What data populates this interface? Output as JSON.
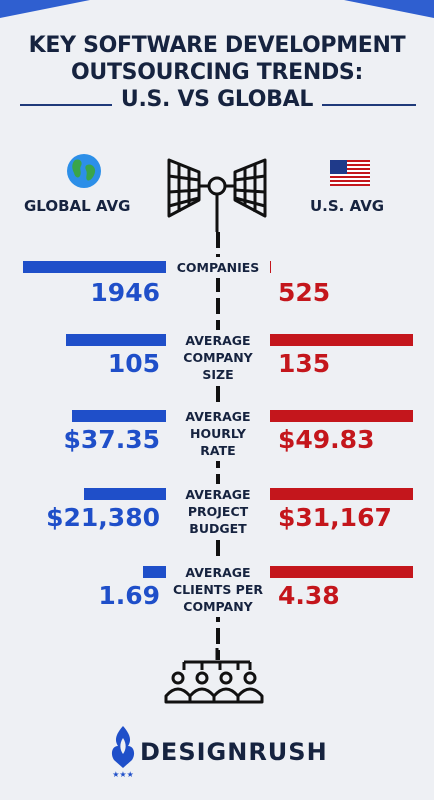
{
  "title_lines": [
    "KEY SOFTWARE DEVELOPMENT",
    "OUTSOURCING TRENDS:",
    "U.S. VS GLOBAL"
  ],
  "left_label": "GLOBAL AVG",
  "right_label": "U.S. AVG",
  "brand": "DESIGNRUSH",
  "colors": {
    "global": "#1f4fc9",
    "us": "#c4161c",
    "text": "#16233f",
    "background": "#eef0f4"
  },
  "chart_data": {
    "type": "bar",
    "layout": "diverging-horizontal",
    "categories": [
      "COMPANIES",
      "AVERAGE COMPANY SIZE",
      "AVERAGE HOURLY RATE",
      "AVERAGE PROJECT BUDGET",
      "AVERAGE CLIENTS PER COMPANY"
    ],
    "category_label_lines": [
      [
        "COMPANIES"
      ],
      [
        "AVERAGE",
        "COMPANY",
        "SIZE"
      ],
      [
        "AVERAGE",
        "HOURLY",
        "RATE"
      ],
      [
        "AVERAGE",
        "PROJECT",
        "BUDGET"
      ],
      [
        "AVERAGE",
        "CLIENTS PER",
        "COMPANY"
      ]
    ],
    "series": [
      {
        "name": "GLOBAL AVG",
        "values": [
          1946,
          105,
          37.35,
          21380,
          1.69
        ],
        "labels": [
          "1946",
          "105",
          "$37.35",
          "$21,380",
          "1.69"
        ]
      },
      {
        "name": "U.S. AVG",
        "values": [
          525,
          135,
          49.83,
          31167,
          4.38
        ],
        "labels": [
          "525",
          "135",
          "$49.83",
          "$31,167",
          "4.38"
        ]
      }
    ]
  }
}
